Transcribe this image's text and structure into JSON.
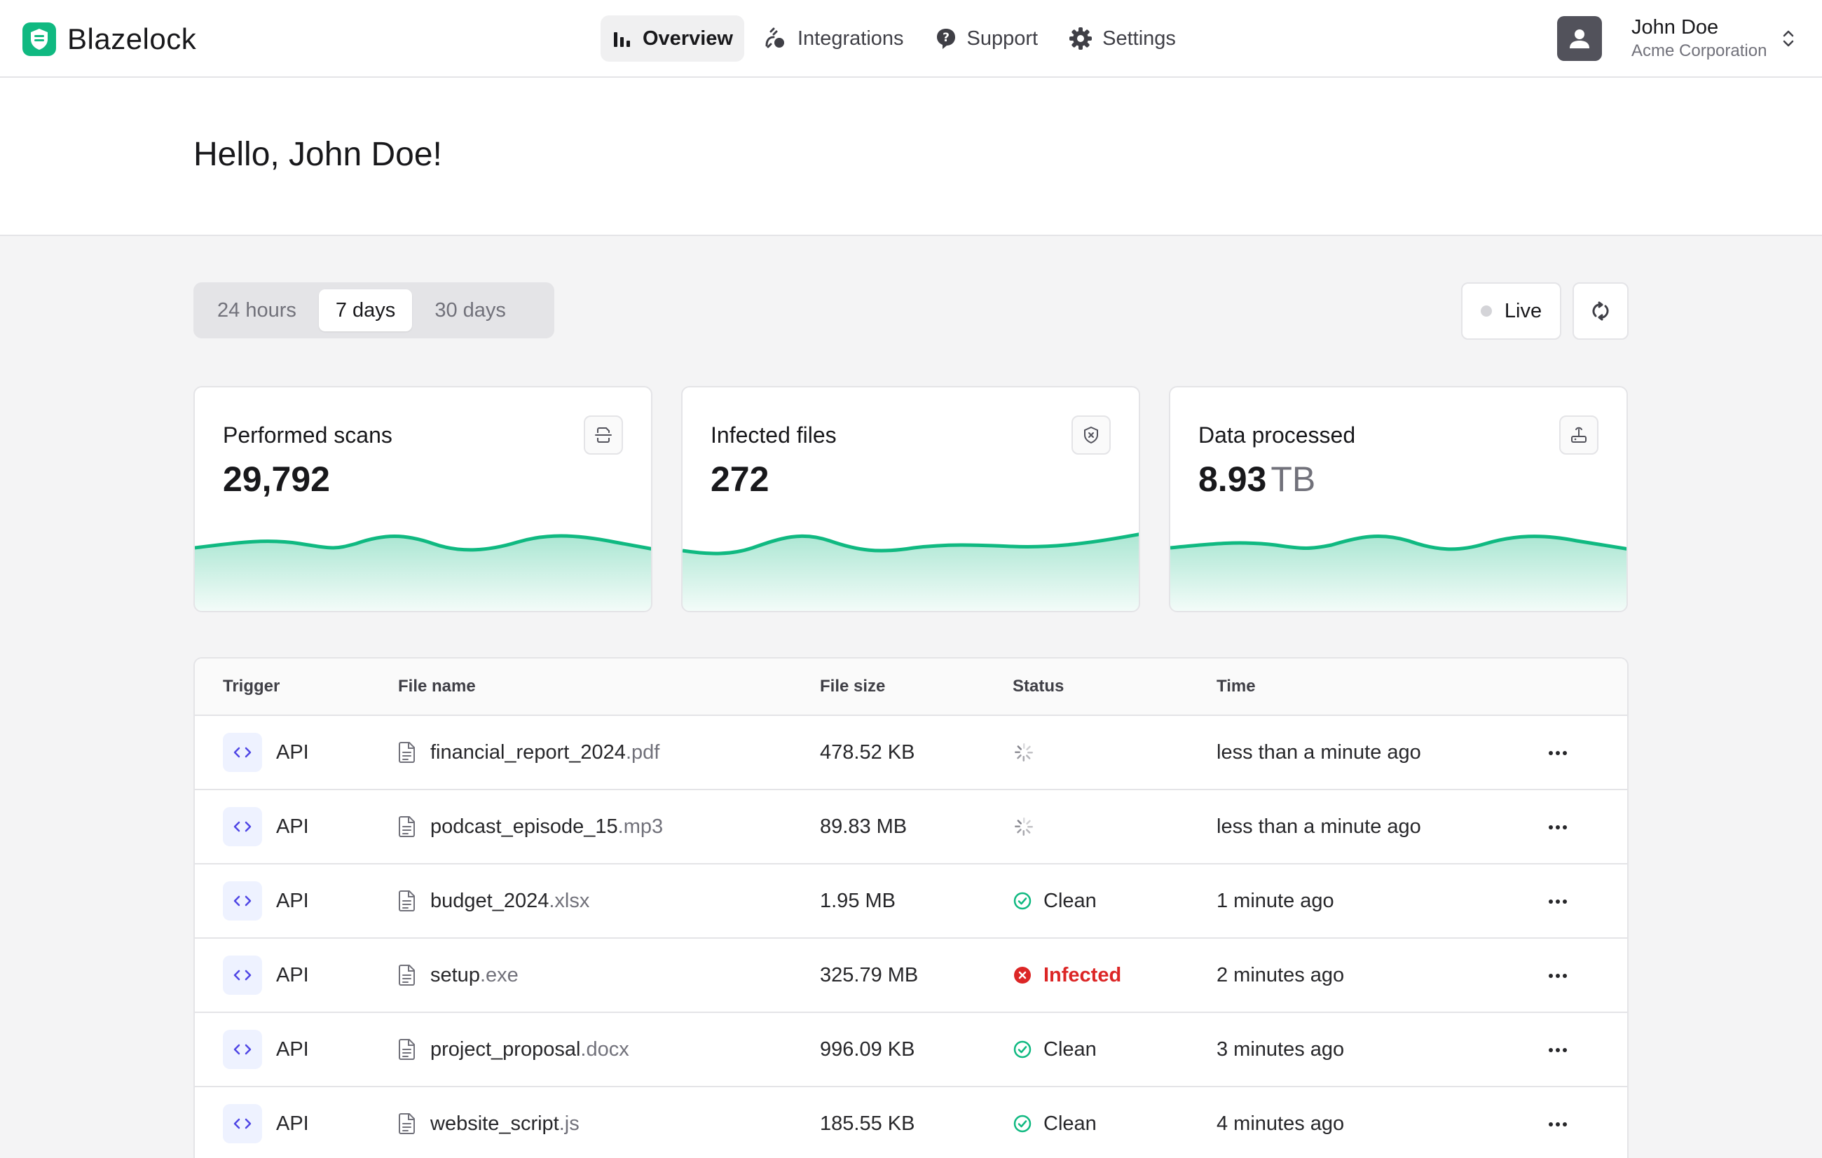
{
  "app": {
    "name": "Blazelock",
    "brand_color": "#10b981"
  },
  "nav": {
    "items": [
      {
        "label": "Overview",
        "icon": "bar-chart-icon",
        "active": true
      },
      {
        "label": "Integrations",
        "icon": "integrations-icon",
        "active": false
      },
      {
        "label": "Support",
        "icon": "help-icon",
        "active": false
      },
      {
        "label": "Settings",
        "icon": "gear-icon",
        "active": false
      }
    ]
  },
  "user": {
    "name": "John Doe",
    "organization": "Acme Corporation"
  },
  "greeting": "Hello, John Doe!",
  "range": {
    "options": [
      "24 hours",
      "7 days",
      "30 days"
    ],
    "selected": "7 days"
  },
  "live": {
    "label": "Live",
    "active": false
  },
  "stats": [
    {
      "title": "Performed scans",
      "value": "29,792",
      "unit": "",
      "icon": "scan-icon"
    },
    {
      "title": "Infected files",
      "value": "272",
      "unit": "",
      "icon": "shield-icon"
    },
    {
      "title": "Data processed",
      "value": "8.93",
      "unit": "TB",
      "icon": "router-icon"
    }
  ],
  "table": {
    "columns": [
      "Trigger",
      "File name",
      "File size",
      "Status",
      "Time"
    ],
    "rows": [
      {
        "trigger": "API",
        "file_base": "financial_report_2024",
        "file_ext": ".pdf",
        "size": "478.52 KB",
        "status": "scanning",
        "status_label": "",
        "time": "less than a minute ago"
      },
      {
        "trigger": "API",
        "file_base": "podcast_episode_15",
        "file_ext": ".mp3",
        "size": "89.83 MB",
        "status": "scanning",
        "status_label": "",
        "time": "less than a minute ago"
      },
      {
        "trigger": "API",
        "file_base": "budget_2024",
        "file_ext": ".xlsx",
        "size": "1.95 MB",
        "status": "clean",
        "status_label": "Clean",
        "time": "1 minute ago"
      },
      {
        "trigger": "API",
        "file_base": "setup",
        "file_ext": ".exe",
        "size": "325.79 MB",
        "status": "infected",
        "status_label": "Infected",
        "time": "2 minutes ago"
      },
      {
        "trigger": "API",
        "file_base": "project_proposal",
        "file_ext": ".docx",
        "size": "996.09 KB",
        "status": "clean",
        "status_label": "Clean",
        "time": "3 minutes ago"
      },
      {
        "trigger": "API",
        "file_base": "website_script",
        "file_ext": ".js",
        "size": "185.55 KB",
        "status": "clean",
        "status_label": "Clean",
        "time": "4 minutes ago"
      }
    ]
  },
  "colors": {
    "clean": "#10b981",
    "infected": "#dc2626",
    "accent_indigo": "#4f46e5"
  }
}
